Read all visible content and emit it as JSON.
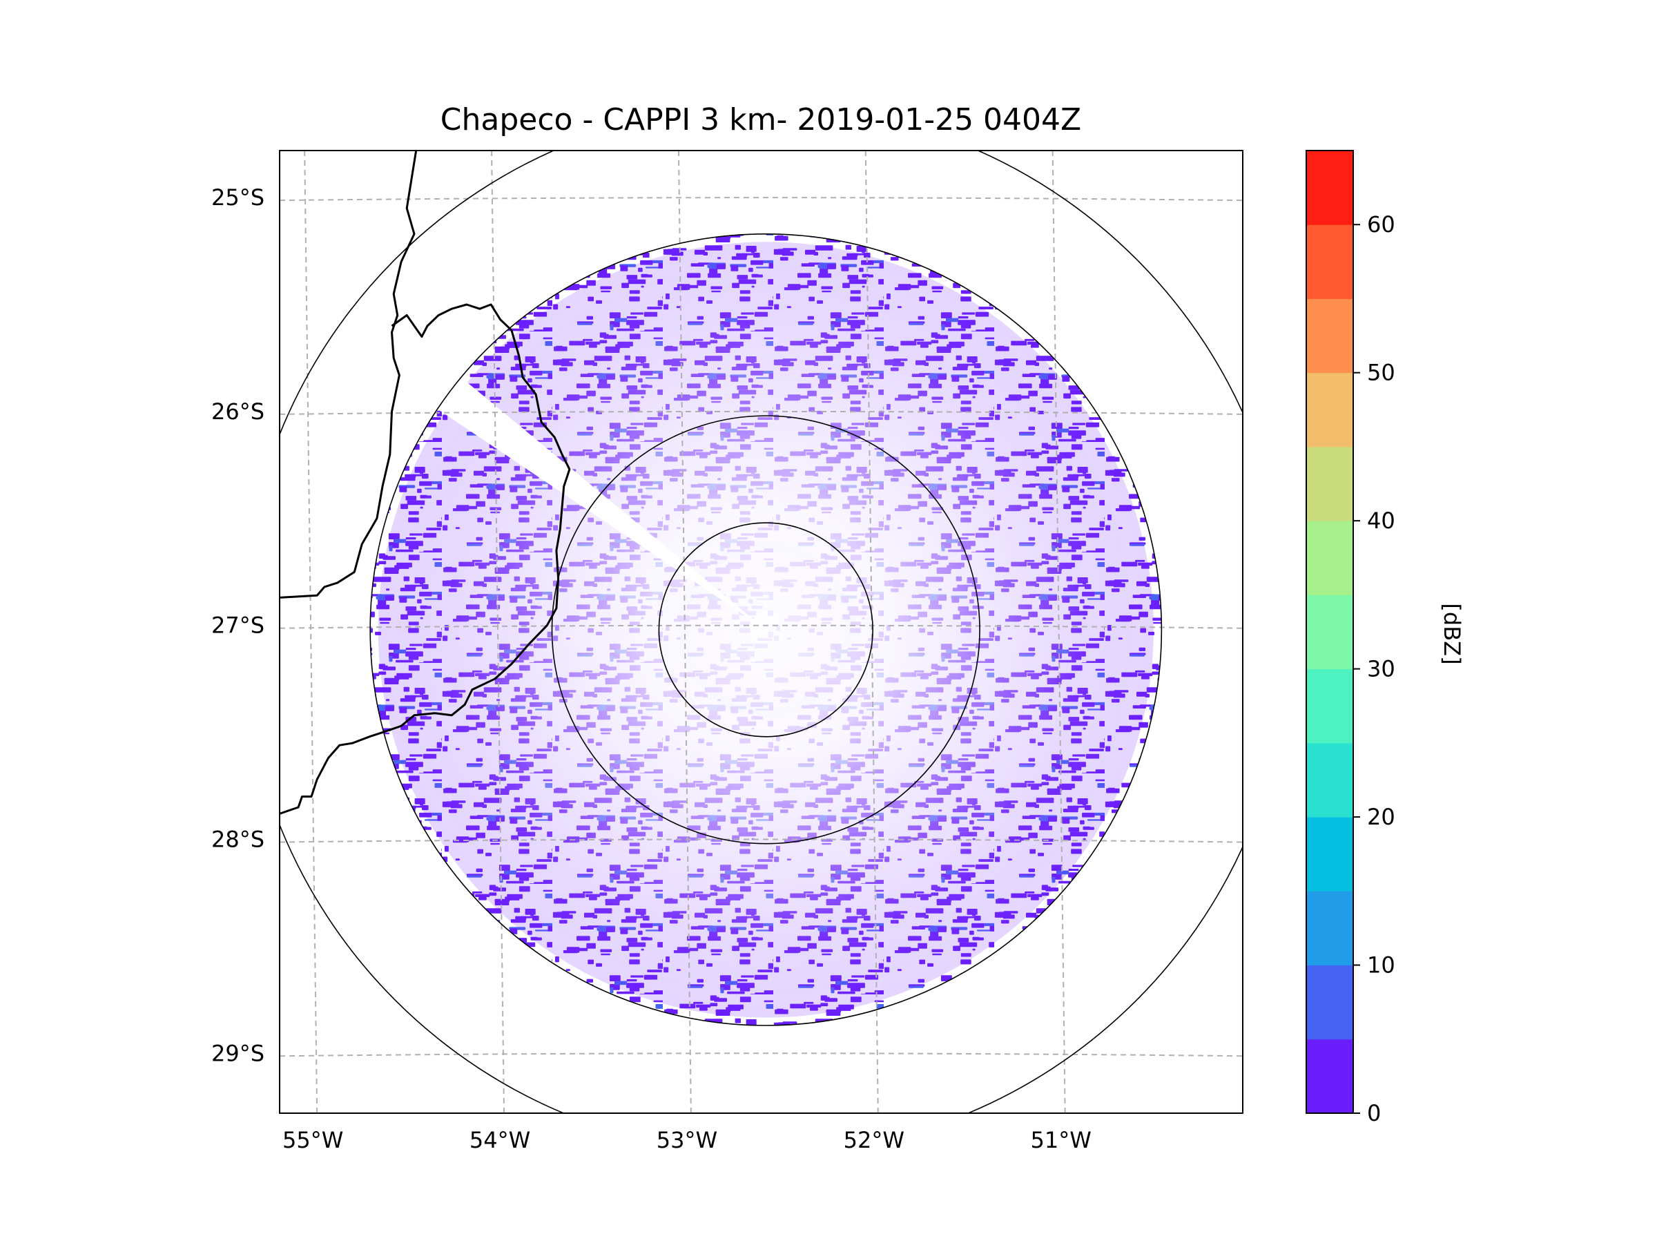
{
  "chart_data": {
    "type": "heatmap",
    "title": "Chapeco - CAPPI 3 km- 2019-01-25 0404Z",
    "variable": "reflectivity",
    "radar_center": {
      "lon": -52.6,
      "lat": -27.02
    },
    "map_extent": {
      "lon": [
        -55.2,
        -50.05
      ],
      "lat": [
        -29.28,
        -24.78
      ]
    },
    "range_rings_deg": [
      0.5,
      1.0,
      1.85,
      2.45
    ],
    "data_extent_deg": 1.85,
    "lat_ticks": [
      {
        "value": -25,
        "label": "25°S"
      },
      {
        "value": -26,
        "label": "26°S"
      },
      {
        "value": -27,
        "label": "27°S"
      },
      {
        "value": -28,
        "label": "28°S"
      },
      {
        "value": -29,
        "label": "29°S"
      }
    ],
    "lon_ticks": [
      {
        "value": -55,
        "label": "55°W"
      },
      {
        "value": -54,
        "label": "54°W"
      },
      {
        "value": -53,
        "label": "53°W"
      },
      {
        "value": -52,
        "label": "52°W"
      },
      {
        "value": -51,
        "label": "51°W"
      }
    ],
    "colorbar": {
      "label": "[dBZ]",
      "levels": [
        0,
        5,
        10,
        15,
        20,
        25,
        30,
        35,
        40,
        45,
        50,
        55,
        60,
        65
      ],
      "colors": [
        "#6a1dfd",
        "#4763f3",
        "#209ce8",
        "#06bee0",
        "#2ae0d0",
        "#4ef2c0",
        "#7ef7a8",
        "#a6f08c",
        "#cbdc7d",
        "#f2be6b",
        "#ff8f4f",
        "#ff5a30",
        "#ff1f12"
      ],
      "tick_values": [
        0,
        10,
        20,
        30,
        40,
        50,
        60
      ],
      "tick_labels": [
        "0",
        "10",
        "20",
        "30",
        "40",
        "50",
        "60"
      ]
    },
    "observed_range_dbz": [
      0,
      12
    ],
    "dominant_color": "#6a1dfd",
    "secondary_color": "#4763f3",
    "border_lines": [
      [
        [
          -54.47,
          -24.78
        ],
        [
          -54.52,
          -25.05
        ],
        [
          -54.48,
          -25.17
        ],
        [
          -54.55,
          -25.3
        ],
        [
          -54.59,
          -25.45
        ],
        [
          -54.57,
          -25.55
        ],
        [
          -54.6,
          -25.63
        ],
        [
          -54.59,
          -25.75
        ],
        [
          -54.56,
          -25.83
        ],
        [
          -54.6,
          -26.0
        ],
        [
          -54.61,
          -26.2
        ],
        [
          -54.65,
          -26.35
        ],
        [
          -54.68,
          -26.5
        ],
        [
          -54.76,
          -26.62
        ],
        [
          -54.8,
          -26.75
        ],
        [
          -54.89,
          -26.8
        ],
        [
          -54.96,
          -26.82
        ],
        [
          -55.0,
          -26.86
        ],
        [
          -55.2,
          -26.87
        ]
      ],
      [
        [
          -54.6,
          -25.6
        ],
        [
          -54.52,
          -25.55
        ],
        [
          -54.44,
          -25.65
        ],
        [
          -54.41,
          -25.6
        ],
        [
          -54.35,
          -25.55
        ],
        [
          -54.28,
          -25.52
        ],
        [
          -54.2,
          -25.5
        ],
        [
          -54.13,
          -25.52
        ],
        [
          -54.07,
          -25.5
        ],
        [
          -54.02,
          -25.57
        ],
        [
          -53.96,
          -25.62
        ],
        [
          -53.92,
          -25.74
        ],
        [
          -53.9,
          -25.84
        ],
        [
          -53.83,
          -25.92
        ],
        [
          -53.8,
          -26.05
        ],
        [
          -53.73,
          -26.12
        ],
        [
          -53.69,
          -26.2
        ],
        [
          -53.65,
          -26.27
        ],
        [
          -53.68,
          -26.35
        ],
        [
          -53.7,
          -26.55
        ],
        [
          -53.72,
          -26.65
        ],
        [
          -53.71,
          -26.78
        ],
        [
          -53.72,
          -26.92
        ],
        [
          -53.77,
          -27.0
        ],
        [
          -53.87,
          -27.09
        ],
        [
          -53.96,
          -27.18
        ],
        [
          -54.05,
          -27.25
        ],
        [
          -54.17,
          -27.3
        ],
        [
          -54.21,
          -27.37
        ],
        [
          -54.28,
          -27.42
        ],
        [
          -54.37,
          -27.41
        ],
        [
          -54.48,
          -27.42
        ],
        [
          -54.55,
          -27.47
        ],
        [
          -54.65,
          -27.5
        ],
        [
          -54.72,
          -27.52
        ],
        [
          -54.81,
          -27.55
        ],
        [
          -54.88,
          -27.56
        ],
        [
          -54.94,
          -27.62
        ],
        [
          -55.0,
          -27.72
        ],
        [
          -55.03,
          -27.8
        ],
        [
          -55.08,
          -27.8
        ],
        [
          -55.1,
          -27.85
        ],
        [
          -55.2,
          -27.88
        ]
      ]
    ]
  }
}
